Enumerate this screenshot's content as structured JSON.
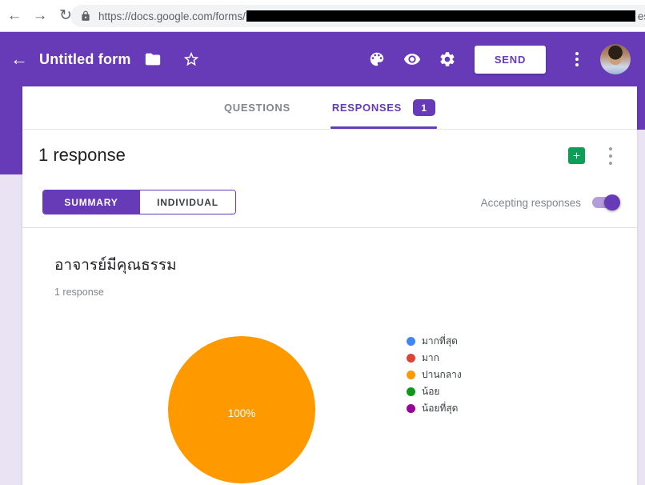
{
  "browser": {
    "back_glyph": "←",
    "forward_glyph": "→",
    "reload_glyph": "↻",
    "url_prefix": "https://docs.google.com/forms/",
    "url_suffix": "es"
  },
  "appbar": {
    "title": "Untitled form",
    "send_label": "SEND"
  },
  "tabs": {
    "questions_label": "QUESTIONS",
    "responses_label": "RESPONSES",
    "responses_count": "1"
  },
  "responses_panel": {
    "title": "1 response",
    "summary_label": "SUMMARY",
    "individual_label": "INDIVIDUAL",
    "accepting_label": "Accepting responses",
    "accepting_on": true
  },
  "question": {
    "title": "อาจารย์มีคุณธรรม",
    "response_count_label": "1 response"
  },
  "chart_data": {
    "type": "pie",
    "title": "อาจารย์มีคุณธรรม",
    "labels": [
      "มากที่สุด",
      "มาก",
      "ปานกลาง",
      "น้อย",
      "น้อยที่สุด"
    ],
    "values": [
      0,
      0,
      1,
      0,
      0
    ],
    "percentages": [
      "0%",
      "0%",
      "100%",
      "0%",
      "0%"
    ],
    "slice_label": "100%",
    "colors": [
      "#4285f4",
      "#db4437",
      "#ff9900",
      "#109618",
      "#990099"
    ],
    "legend_position": "right"
  },
  "colors": {
    "accent_purple": "#673ab7",
    "toggle_track": "#b39ddb",
    "sheets_green": "#0f9d58",
    "page_background": "#e9e3f3",
    "pie_slice": "#ff9900"
  }
}
